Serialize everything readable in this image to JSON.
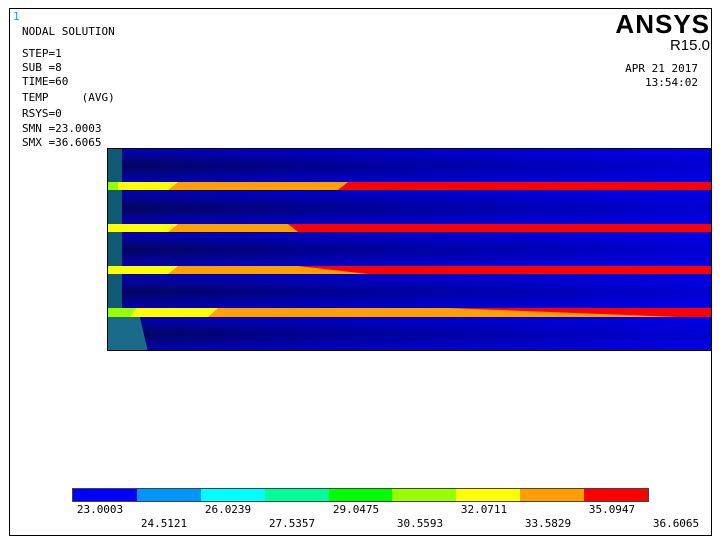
{
  "window": {
    "number": "1"
  },
  "header": {
    "title": "NODAL SOLUTION",
    "step": "STEP=1",
    "sub": "SUB =8",
    "time": "TIME=60",
    "result": "TEMP     (AVG)",
    "rsys": "RSYS=0",
    "smn": "SMN =23.0003",
    "smx": "SMX =36.6065"
  },
  "brand": {
    "name": "ANSYS",
    "version": "R15.0"
  },
  "timestamp": {
    "date": "APR 21 2017",
    "time": "13:54:02"
  },
  "legend": {
    "colors": [
      "#0000ff",
      "#0096ff",
      "#00ffff",
      "#00ff96",
      "#00ff00",
      "#96ff00",
      "#ffff00",
      "#ffa000",
      "#ff0000"
    ],
    "labels": [
      "23.0003",
      "24.5121",
      "26.0239",
      "27.5357",
      "29.0475",
      "30.5593",
      "32.0711",
      "33.5829",
      "35.0947",
      "36.6065"
    ]
  },
  "colors": {
    "background_blue": "#0000cc",
    "dark_blue": "#0a0a6e",
    "teal": "#1a6b7a"
  }
}
